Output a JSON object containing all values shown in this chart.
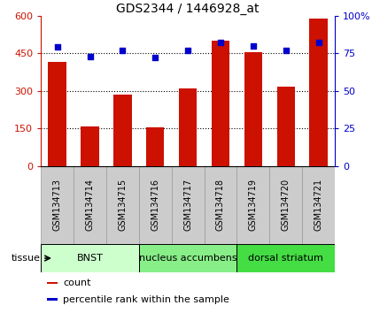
{
  "title": "GDS2344 / 1446928_at",
  "samples": [
    "GSM134713",
    "GSM134714",
    "GSM134715",
    "GSM134716",
    "GSM134717",
    "GSM134718",
    "GSM134719",
    "GSM134720",
    "GSM134721"
  ],
  "counts": [
    415,
    158,
    285,
    155,
    310,
    500,
    455,
    315,
    590
  ],
  "percentiles": [
    79,
    73,
    77,
    72,
    77,
    82,
    80,
    77,
    82
  ],
  "ylim_left": [
    0,
    600
  ],
  "ylim_right": [
    0,
    100
  ],
  "yticks_left": [
    0,
    150,
    300,
    450,
    600
  ],
  "ytick_labels_left": [
    "0",
    "150",
    "300",
    "450",
    "600"
  ],
  "yticks_right": [
    0,
    25,
    50,
    75,
    100
  ],
  "ytick_labels_right": [
    "0",
    "25",
    "50",
    "75",
    "100%"
  ],
  "bar_color": "#cc1100",
  "dot_color": "#0000cc",
  "tissue_groups": [
    {
      "label": "BNST",
      "start": 0,
      "end": 3,
      "color": "#ccffcc"
    },
    {
      "label": "nucleus accumbens",
      "start": 3,
      "end": 6,
      "color": "#88ee88"
    },
    {
      "label": "dorsal striatum",
      "start": 6,
      "end": 9,
      "color": "#44dd44"
    }
  ],
  "tissue_label": "tissue",
  "legend_items": [
    {
      "label": "count",
      "color": "#cc1100"
    },
    {
      "label": "percentile rank within the sample",
      "color": "#0000cc"
    }
  ],
  "bar_width": 0.55,
  "tick_label_color_left": "#cc1100",
  "tick_label_color_right": "#0000cc",
  "background_color": "#ffffff",
  "sample_box_color": "#cccccc",
  "sample_box_edge": "#999999"
}
